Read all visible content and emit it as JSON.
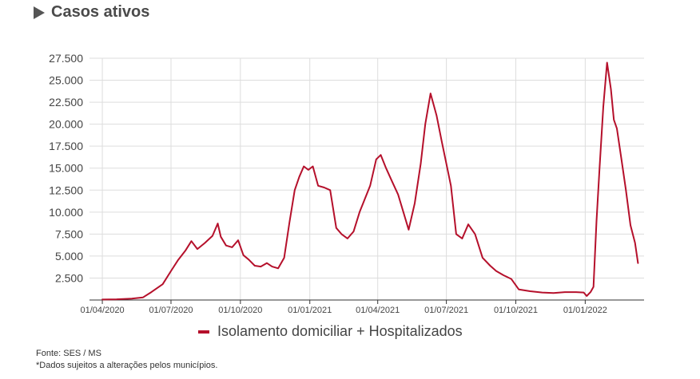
{
  "header": {
    "title": "Casos ativos"
  },
  "footer": {
    "source": "Fonte: SES / MS",
    "note": "*Dados sujeitos a alterações pelos municípios."
  },
  "colors": {
    "series": "#b5102b",
    "grid": "#dddddd",
    "axis": "#333333"
  },
  "chart_data": {
    "type": "line",
    "title": "Casos ativos",
    "xlabel": "",
    "ylabel": "",
    "ylim": [
      0,
      27500
    ],
    "y_ticks": [
      2500,
      5000,
      7500,
      10000,
      12500,
      15000,
      17500,
      20000,
      22500,
      25000,
      27500
    ],
    "y_tick_labels": [
      "2.500",
      "5.000",
      "7.500",
      "10.000",
      "12.500",
      "15.000",
      "17.500",
      "20.000",
      "22.500",
      "25.000",
      "27.500"
    ],
    "x_ticks": [
      "2020-04-01",
      "2020-07-01",
      "2020-10-01",
      "2021-01-01",
      "2021-04-01",
      "2021-07-01",
      "2021-10-01",
      "2022-01-01"
    ],
    "x_tick_labels": [
      "01/04/2020",
      "01/07/2020",
      "01/10/2020",
      "01/01/2021",
      "01/04/2021",
      "01/07/2021",
      "01/10/2021",
      "01/01/2022"
    ],
    "xlim": [
      "2020-03-15",
      "2022-03-20"
    ],
    "grid": true,
    "legend_position": "bottom",
    "series": [
      {
        "name": "Isolamento domiciliar + Hospitalizados",
        "x": [
          "2020-04-01",
          "2020-04-20",
          "2020-05-10",
          "2020-05-25",
          "2020-06-05",
          "2020-06-20",
          "2020-07-01",
          "2020-07-10",
          "2020-07-20",
          "2020-07-28",
          "2020-08-05",
          "2020-08-15",
          "2020-08-25",
          "2020-09-01",
          "2020-09-05",
          "2020-09-12",
          "2020-09-20",
          "2020-09-28",
          "2020-10-05",
          "2020-10-12",
          "2020-10-20",
          "2020-10-28",
          "2020-11-05",
          "2020-11-12",
          "2020-11-20",
          "2020-11-28",
          "2020-12-05",
          "2020-12-12",
          "2020-12-18",
          "2020-12-24",
          "2020-12-30",
          "2021-01-05",
          "2021-01-12",
          "2021-01-20",
          "2021-01-28",
          "2021-02-05",
          "2021-02-12",
          "2021-02-20",
          "2021-02-28",
          "2021-03-08",
          "2021-03-15",
          "2021-03-22",
          "2021-03-30",
          "2021-04-05",
          "2021-04-12",
          "2021-04-20",
          "2021-04-28",
          "2021-05-05",
          "2021-05-12",
          "2021-05-20",
          "2021-05-28",
          "2021-06-03",
          "2021-06-10",
          "2021-06-18",
          "2021-06-25",
          "2021-07-01",
          "2021-07-07",
          "2021-07-14",
          "2021-07-22",
          "2021-07-30",
          "2021-08-08",
          "2021-08-18",
          "2021-08-28",
          "2021-09-05",
          "2021-09-15",
          "2021-09-25",
          "2021-10-05",
          "2021-10-20",
          "2021-11-05",
          "2021-11-20",
          "2021-12-05",
          "2021-12-20",
          "2021-12-30",
          "2022-01-03",
          "2022-01-08",
          "2022-01-12",
          "2022-01-16",
          "2022-01-20",
          "2022-01-25",
          "2022-01-30",
          "2022-02-04",
          "2022-02-08",
          "2022-02-12",
          "2022-02-18",
          "2022-02-24",
          "2022-03-02",
          "2022-03-08",
          "2022-03-12"
        ],
        "values": [
          50,
          80,
          150,
          300,
          900,
          1800,
          3300,
          4500,
          5600,
          6700,
          5800,
          6500,
          7300,
          8700,
          7200,
          6200,
          6000,
          6800,
          5100,
          4600,
          3900,
          3800,
          4200,
          3800,
          3600,
          4800,
          8800,
          12500,
          14000,
          15200,
          14800,
          15200,
          13000,
          12800,
          12500,
          8200,
          7500,
          7000,
          7800,
          10000,
          11500,
          13000,
          16000,
          16500,
          15000,
          13500,
          12000,
          10000,
          8000,
          11000,
          15500,
          20000,
          23500,
          21000,
          18000,
          15500,
          13000,
          7500,
          7000,
          8600,
          7500,
          4800,
          3900,
          3300,
          2800,
          2400,
          1200,
          1000,
          850,
          800,
          900,
          900,
          850,
          450,
          900,
          1500,
          9000,
          15000,
          22000,
          27000,
          24000,
          20500,
          19500,
          16000,
          12500,
          8500,
          6500,
          4200
        ]
      }
    ]
  }
}
